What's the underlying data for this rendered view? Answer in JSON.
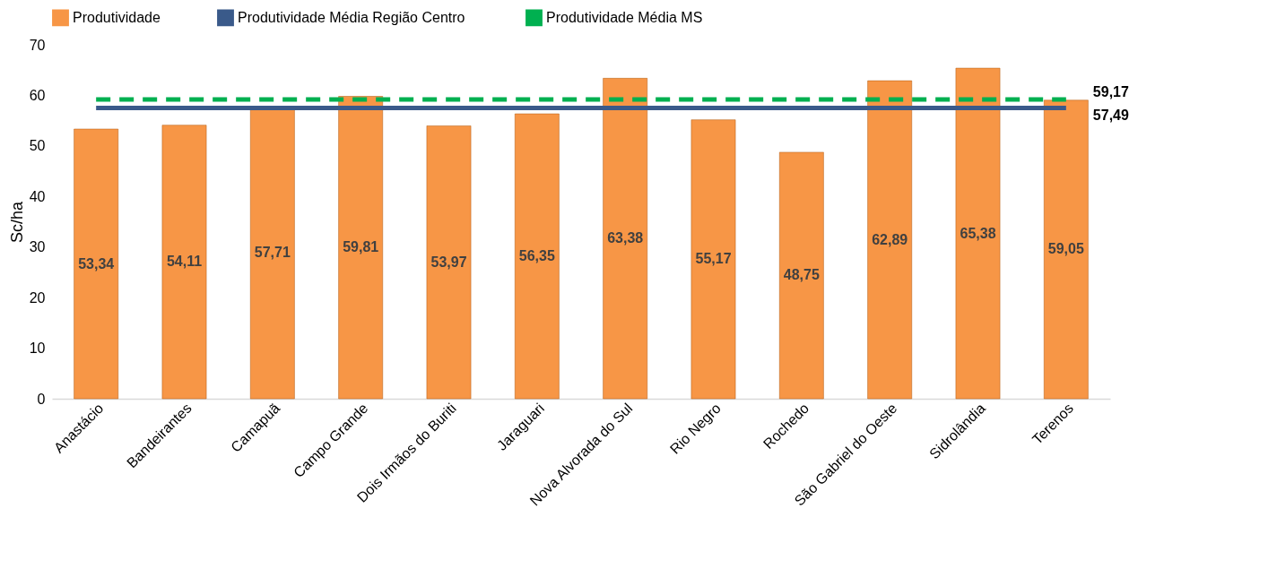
{
  "chart_data": {
    "type": "bar",
    "ylabel": "Sc/ha",
    "categories": [
      "Anastácio",
      "Bandeirantes",
      "Camapuã",
      "Campo Grande",
      "Dois Irmãos do Buriti",
      "Jaraguari",
      "Nova Alvorada do Sul",
      "Rio Negro",
      "Rochedo",
      "São Gabriel do Oeste",
      "Sidrolândia",
      "Terenos"
    ],
    "series": [
      {
        "name": "Produtividade",
        "color": "#f79646",
        "values": [
          53.34,
          54.11,
          57.71,
          59.81,
          53.97,
          56.35,
          63.38,
          55.17,
          48.75,
          62.89,
          65.38,
          59.05
        ],
        "value_labels": [
          "53,34",
          "54,11",
          "57,71",
          "59,81",
          "53,97",
          "56,35",
          "63,38",
          "55,17",
          "48,75",
          "62,89",
          "65,38",
          "59,05"
        ]
      },
      {
        "name": "Produtividade  Média Região Centro",
        "type": "line",
        "color": "#3a5a8a",
        "line_style": "solid",
        "values": [
          57.49,
          57.49,
          57.49,
          57.49,
          57.49,
          57.49,
          57.49,
          57.49,
          57.49,
          57.49,
          57.49,
          57.49
        ],
        "value_labels": [
          null,
          null,
          null,
          null,
          null,
          null,
          null,
          null,
          null,
          null,
          null,
          "57,49"
        ]
      },
      {
        "name": "Produtividade Média MS",
        "type": "line",
        "color": "#00b050",
        "line_style": "dashed",
        "values": [
          59.17,
          59.17,
          59.17,
          59.17,
          59.17,
          59.17,
          59.17,
          59.17,
          59.17,
          59.17,
          59.17,
          59.17
        ],
        "value_labels": [
          null,
          null,
          null,
          null,
          null,
          null,
          null,
          null,
          null,
          null,
          null,
          "59,17"
        ]
      }
    ],
    "ylim": [
      0,
      70
    ],
    "yticks": [
      0,
      10,
      20,
      30,
      40,
      50,
      60,
      70
    ],
    "grid": false,
    "legend": "top"
  }
}
